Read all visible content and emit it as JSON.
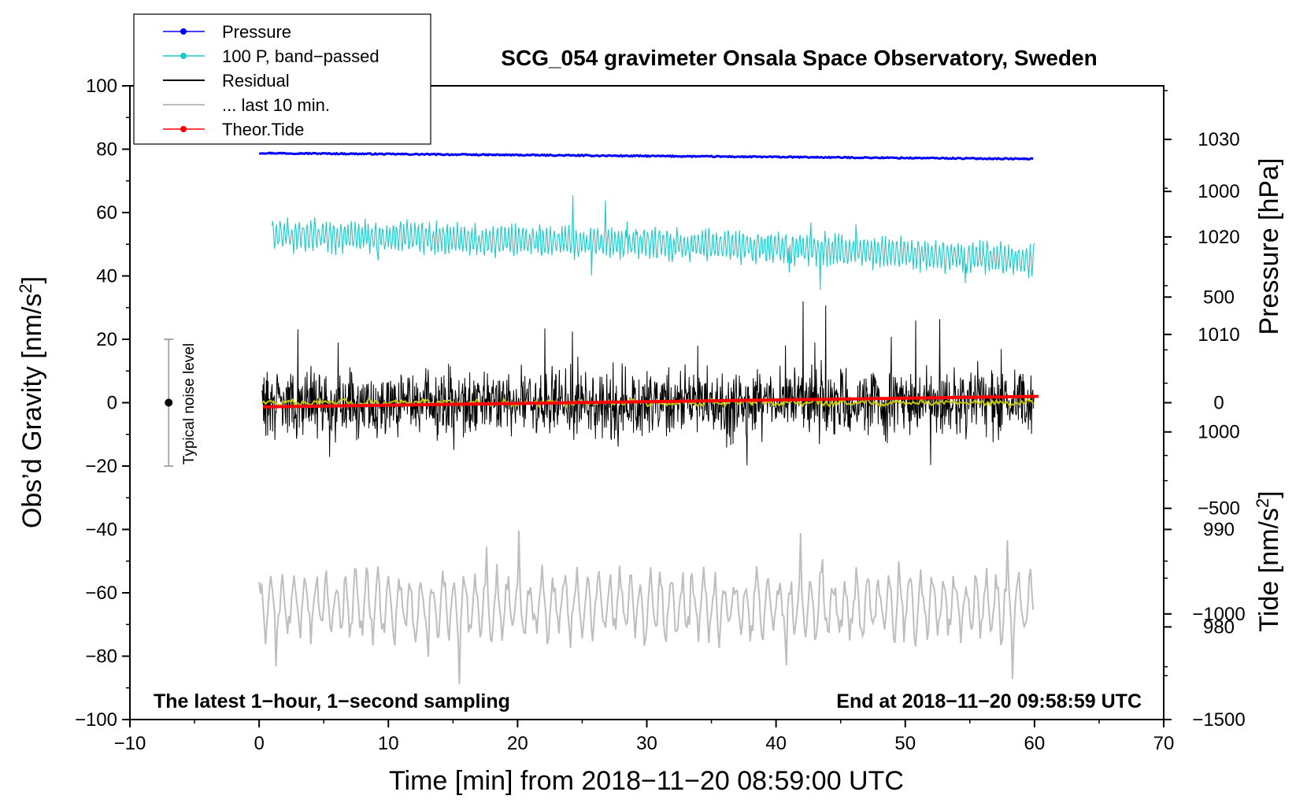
{
  "chart_data": {
    "type": "line",
    "title": "SCG_054 gravimeter Onsala Space Observatory, Sweden",
    "xlabel": "Time [min] from 2018−11−20 08:59:00 UTC",
    "ylabel_left": "Obs’d Gravity [nm/s",
    "ylabel_left_sup": "2",
    "ylabel_left_close": "]",
    "ylabel_right_pressure": "Pressure [hPa]",
    "ylabel_right_tide": "Tide [nm/s",
    "ylabel_right_tide_sup": "2",
    "ylabel_right_tide_close": "]",
    "xlim": [
      -10,
      70
    ],
    "ylim_left": [
      -100,
      100
    ],
    "ylim_pressure": [
      970.5,
      1035.5
    ],
    "ylim_tide": [
      -1500,
      1500
    ],
    "xticks": [
      "−10",
      "0",
      "10",
      "20",
      "30",
      "40",
      "50",
      "60",
      "70"
    ],
    "yticks_left": [
      "−100",
      "−80",
      "−60",
      "−40",
      "−20",
      "0",
      "20",
      "40",
      "60",
      "80",
      "100"
    ],
    "yticks_pressure": [
      "980",
      "990",
      "1000",
      "1010",
      "1020",
      "1030"
    ],
    "yticks_tide": [
      "−1500",
      "−1000",
      "−500",
      "0",
      "500",
      "1000"
    ],
    "note_left": "The latest 1−hour, 1−second sampling",
    "note_right": "End at 2018−11−20 09:58:59 UTC",
    "noise_label": "Typical noise level",
    "noise_bar": {
      "x": -7,
      "center": 0,
      "half_range": 20
    },
    "legend": [
      {
        "label": "Pressure",
        "color": "#0000ff",
        "marker": true
      },
      {
        "label": "100 P, band−passed",
        "color": "#20c8c8",
        "marker": true
      },
      {
        "label": "Residual",
        "color": "#000000",
        "marker": false
      },
      {
        "label": "... last 10 min.",
        "color": "#bebebe",
        "marker": false
      },
      {
        "label": "Theor.Tide",
        "color": "#ff0000",
        "marker": true
      }
    ],
    "series": [
      {
        "name": "Pressure",
        "axis": "pressure",
        "x": [
          0,
          10,
          20,
          30,
          40,
          50,
          60
        ],
        "values": [
          1028.6,
          1028.5,
          1028.4,
          1028.3,
          1028.2,
          1028.1,
          1028.0
        ],
        "color": "#0000ff"
      },
      {
        "name": "100 P, band-passed",
        "axis": "left",
        "x_range": [
          1,
          60
        ],
        "center": [
          53,
          52,
          51,
          50,
          49,
          47,
          45
        ],
        "amplitude": 5,
        "color": "#20c8c8"
      },
      {
        "name": "Residual",
        "axis": "left",
        "x_range": [
          0.2,
          60
        ],
        "center": 0,
        "amplitude": 12,
        "color": "#000000"
      },
      {
        "name": "Residual smoothed",
        "axis": "left",
        "x_range": [
          0.2,
          60
        ],
        "center": 0,
        "amplitude": 0.8,
        "color": "#c8c800"
      },
      {
        "name": "... last 10 min.",
        "axis": "left",
        "x_range": [
          0,
          60
        ],
        "center": -64,
        "amplitude": 9,
        "color": "#bebebe"
      },
      {
        "name": "Theor.Tide",
        "axis": "tide",
        "x": [
          0.3,
          60.5
        ],
        "values": [
          -20,
          30
        ],
        "color": "#ff0000"
      }
    ]
  }
}
